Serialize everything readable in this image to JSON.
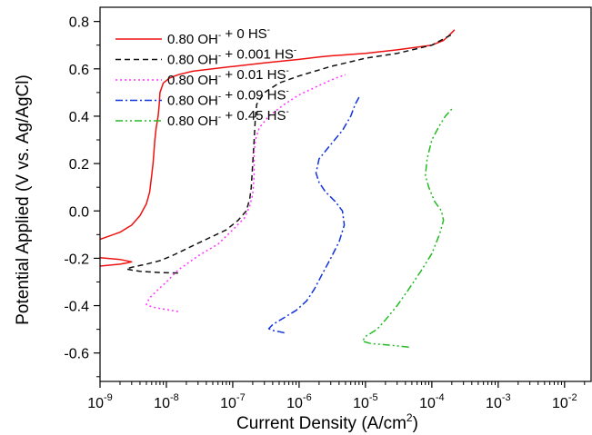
{
  "chart_data": {
    "type": "line",
    "title": "",
    "xlabel": {
      "base": "Current Density (A/cm",
      "sup": "2",
      "tail": ")"
    },
    "ylabel": "Potential Applied (V vs. Ag/AgCl)",
    "xscale": "log",
    "xlim_exp": [
      -9,
      -1.6
    ],
    "ylim": [
      -0.72,
      0.86
    ],
    "x_ticks": [
      {
        "base": "10",
        "exp": "-9",
        "value_exp": -9
      },
      {
        "base": "10",
        "exp": "-8",
        "value_exp": -8
      },
      {
        "base": "10",
        "exp": "-7",
        "value_exp": -7
      },
      {
        "base": "10",
        "exp": "-6",
        "value_exp": -6
      },
      {
        "base": "10",
        "exp": "-5",
        "value_exp": -5
      },
      {
        "base": "10",
        "exp": "-4",
        "value_exp": -4
      },
      {
        "base": "10",
        "exp": "-3",
        "value_exp": -3
      },
      {
        "base": "10",
        "exp": "-2",
        "value_exp": -2
      }
    ],
    "y_ticks": [
      {
        "label": "0.8",
        "value": 0.8
      },
      {
        "label": "0.6",
        "value": 0.6
      },
      {
        "label": "0.4",
        "value": 0.4
      },
      {
        "label": "0.2",
        "value": 0.2
      },
      {
        "label": "0.0",
        "value": 0.0
      },
      {
        "label": "-0.2",
        "value": -0.2
      },
      {
        "label": "-0.4",
        "value": -0.4
      },
      {
        "label": "-0.6",
        "value": -0.6
      }
    ],
    "grid": false,
    "legend_position": "top-left",
    "series": [
      {
        "legend_parts": [
          [
            "0.80 OH",
            "-"
          ],
          [
            " + 0 HS",
            "-"
          ]
        ],
        "color": "#ee1111",
        "dash": "solid",
        "points": [
          [
            3e-05,
            -0.24
          ],
          [
            0.0001,
            -0.233
          ],
          [
            0.0002,
            -0.225
          ],
          [
            0.00025,
            -0.22
          ],
          [
            0.0003,
            -0.215
          ],
          [
            0.0002,
            -0.205
          ],
          [
            5e-05,
            -0.19
          ],
          [
            1e-05,
            -0.18
          ],
          [
            1.2e-05,
            -0.175
          ],
          [
            2e-05,
            -0.17
          ],
          [
            5e-05,
            -0.15
          ],
          [
            0.0001,
            -0.12
          ],
          [
            0.0002,
            -0.09
          ],
          [
            0.0003,
            -0.06
          ],
          [
            0.0004,
            -0.02
          ],
          [
            0.0005,
            0.03
          ],
          [
            0.00056,
            0.08
          ],
          [
            0.0006,
            0.15
          ],
          [
            0.00063,
            0.2
          ],
          [
            0.00065,
            0.25
          ],
          [
            0.00067,
            0.3
          ],
          [
            0.0007,
            0.35
          ],
          [
            0.00075,
            0.4
          ],
          [
            0.00078,
            0.45
          ],
          [
            0.0008,
            0.5
          ],
          [
            0.0009,
            0.54
          ],
          [
            0.0011,
            0.56
          ],
          [
            0.0015,
            0.575
          ],
          [
            0.0025,
            0.59
          ],
          [
            0.01,
            0.61
          ],
          [
            0.03,
            0.625
          ],
          [
            0.1,
            0.64
          ],
          [
            0.2,
            0.65
          ],
          [
            0.3,
            0.655
          ],
          [
            1,
            0.665
          ],
          [
            3,
            0.68
          ],
          [
            10,
            0.7
          ],
          [
            15,
            0.72
          ],
          [
            18,
            0.74
          ],
          [
            22,
            0.765
          ]
        ]
      },
      {
        "legend_parts": [
          [
            "0.80 OH",
            "-"
          ],
          [
            " + 0.001 HS",
            "-"
          ]
        ],
        "color": "#111111",
        "dash": "6,4",
        "points": [
          [
            0.0015,
            -0.262
          ],
          [
            0.0008,
            -0.26
          ],
          [
            0.0004,
            -0.255
          ],
          [
            0.0003,
            -0.25
          ],
          [
            0.00025,
            -0.245
          ],
          [
            0.0003,
            -0.238
          ],
          [
            0.0005,
            -0.225
          ],
          [
            0.0008,
            -0.21
          ],
          [
            0.0012,
            -0.19
          ],
          [
            0.002,
            -0.16
          ],
          [
            0.004,
            -0.12
          ],
          [
            0.008,
            -0.08
          ],
          [
            0.012,
            -0.04
          ],
          [
            0.016,
            0.0
          ],
          [
            0.018,
            0.05
          ],
          [
            0.019,
            0.1
          ],
          [
            0.0195,
            0.15
          ],
          [
            0.02,
            0.2
          ],
          [
            0.021,
            0.3
          ],
          [
            0.022,
            0.4
          ],
          [
            0.023,
            0.45
          ],
          [
            0.03,
            0.5
          ],
          [
            0.05,
            0.54
          ],
          [
            0.1,
            0.57
          ],
          [
            0.3,
            0.61
          ],
          [
            1,
            0.645
          ],
          [
            3,
            0.665
          ],
          [
            10,
            0.7
          ],
          [
            20,
            0.745
          ]
        ]
      },
      {
        "legend_parts": [
          [
            "0.80 OH",
            "-"
          ],
          [
            " + 0.01 HS",
            "-"
          ]
        ],
        "color": "#ff33ff",
        "dash": "2,3",
        "points": [
          [
            0.0015,
            -0.425
          ],
          [
            0.0012,
            -0.42
          ],
          [
            0.0008,
            -0.412
          ],
          [
            0.0006,
            -0.405
          ],
          [
            0.0005,
            -0.395
          ],
          [
            0.00055,
            -0.37
          ],
          [
            0.0007,
            -0.34
          ],
          [
            0.001,
            -0.3
          ],
          [
            0.0015,
            -0.25
          ],
          [
            0.003,
            -0.19
          ],
          [
            0.006,
            -0.14
          ],
          [
            0.01,
            -0.08
          ],
          [
            0.015,
            -0.03
          ],
          [
            0.018,
            0.02
          ],
          [
            0.02,
            0.07
          ],
          [
            0.021,
            0.15
          ],
          [
            0.021,
            0.25
          ],
          [
            0.022,
            0.3
          ],
          [
            0.025,
            0.35
          ],
          [
            0.035,
            0.4
          ],
          [
            0.06,
            0.45
          ],
          [
            0.1,
            0.49
          ],
          [
            0.2,
            0.53
          ],
          [
            0.35,
            0.56
          ],
          [
            0.5,
            0.575
          ]
        ]
      },
      {
        "legend_parts": [
          [
            "0.80 OH",
            "-"
          ],
          [
            " + 0.09 HS",
            "-"
          ]
        ],
        "color": "#1133dd",
        "dash": "8,3,2,3",
        "points": [
          [
            0.06,
            -0.515
          ],
          [
            0.05,
            -0.51
          ],
          [
            0.04,
            -0.505
          ],
          [
            0.035,
            -0.497
          ],
          [
            0.04,
            -0.48
          ],
          [
            0.06,
            -0.45
          ],
          [
            0.09,
            -0.42
          ],
          [
            0.13,
            -0.38
          ],
          [
            0.17,
            -0.33
          ],
          [
            0.22,
            -0.27
          ],
          [
            0.3,
            -0.2
          ],
          [
            0.4,
            -0.13
          ],
          [
            0.48,
            -0.06
          ],
          [
            0.45,
            0.0
          ],
          [
            0.35,
            0.04
          ],
          [
            0.25,
            0.08
          ],
          [
            0.2,
            0.12
          ],
          [
            0.18,
            0.16
          ],
          [
            0.2,
            0.22
          ],
          [
            0.3,
            0.28
          ],
          [
            0.45,
            0.34
          ],
          [
            0.6,
            0.4
          ],
          [
            0.7,
            0.45
          ],
          [
            0.8,
            0.48
          ]
        ]
      },
      {
        "legend_parts": [
          [
            "0.80 OH",
            "-"
          ],
          [
            " + 0.45 HS",
            "-"
          ]
        ],
        "color": "#22bb22",
        "dash": "8,3,2,3,2,3",
        "points": [
          [
            4.5,
            -0.575
          ],
          [
            3,
            -0.57
          ],
          [
            2,
            -0.565
          ],
          [
            1.2,
            -0.56
          ],
          [
            0.9,
            -0.55
          ],
          [
            1,
            -0.53
          ],
          [
            1.5,
            -0.5
          ],
          [
            2,
            -0.46
          ],
          [
            3,
            -0.4
          ],
          [
            4.5,
            -0.33
          ],
          [
            7,
            -0.25
          ],
          [
            10,
            -0.18
          ],
          [
            13,
            -0.1
          ],
          [
            15,
            -0.04
          ],
          [
            14,
            0.0
          ],
          [
            11,
            0.04
          ],
          [
            9,
            0.1
          ],
          [
            8,
            0.15
          ],
          [
            8.5,
            0.22
          ],
          [
            10,
            0.3
          ],
          [
            13,
            0.36
          ],
          [
            16,
            0.4
          ],
          [
            20,
            0.43
          ]
        ]
      }
    ],
    "points_unit_note": "x values in units of 1e-5 A/cm^2"
  }
}
